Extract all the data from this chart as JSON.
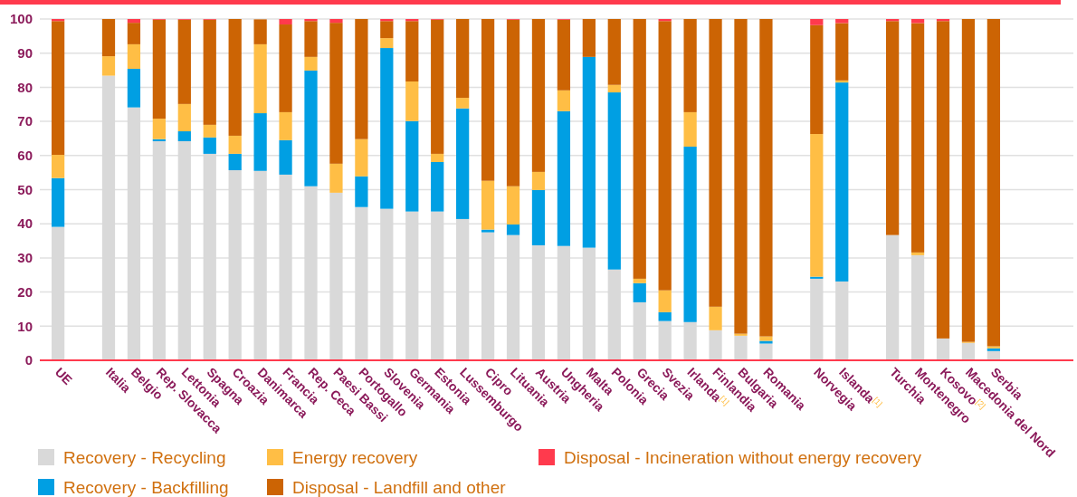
{
  "chart_data": {
    "type": "bar",
    "stacked": true,
    "grid": "y",
    "legend": "bottom",
    "categories": [
      "UE",
      null,
      "Italia",
      "Belgio",
      "Rep. Slovacca",
      "Lettonia",
      "Spagna",
      "Croazia",
      "Danimarca",
      "Francia",
      "Rep. Ceca",
      "Paesi Bassi",
      "Portogallo",
      "Slovenia",
      "Germania",
      "Estonia",
      "Lussemburgo",
      "Cipro",
      "Lituania",
      "Austria",
      "Ungheria",
      "Malta",
      "Polonia",
      "Grecia",
      "Svezia",
      "Irlanda$^{[1]}$",
      "Finlandia",
      "Bulgaria",
      "Romania",
      null,
      "Norvegia",
      "Islanda$^{[1]}$",
      null,
      "Turchia",
      "Montenegro",
      "Kosovo$^{[2]}$",
      "Macedonia del Nord",
      "Serbia"
    ],
    "ylim": [
      0,
      100
    ],
    "yticks": [
      0,
      10,
      20,
      30,
      40,
      50,
      60,
      70,
      80,
      90,
      100
    ],
    "series": [
      {
        "name": "Recovery - Recycling",
        "color": "#d9d9d9",
        "values": [
          39.1,
          null,
          83.4,
          74.1,
          64.2,
          64.2,
          60.5,
          55.7,
          55.5,
          54.4,
          51.0,
          49.1,
          44.9,
          44.4,
          43.6,
          43.6,
          41.4,
          37.5,
          36.7,
          33.7,
          33.5,
          33.0,
          26.6,
          17.0,
          11.5,
          11.2,
          8.8,
          7.2,
          4.9,
          null,
          23.9,
          23.1,
          null,
          36.7,
          30.8,
          6.4,
          5.1,
          2.7
        ]
      },
      {
        "name": "Recovery - Backfilling",
        "color": "#009fe3",
        "values": [
          14.3,
          null,
          0,
          11.3,
          0.6,
          2.9,
          4.8,
          4.8,
          16.9,
          10.1,
          33.9,
          0,
          9.0,
          47.1,
          26.5,
          14.5,
          32.4,
          0.8,
          3.1,
          16.2,
          39.5,
          55.9,
          51.9,
          5.6,
          2.6,
          51.4,
          0,
          0,
          0.8,
          null,
          0.6,
          58.3,
          null,
          0,
          0,
          0,
          0,
          0.8
        ]
      },
      {
        "name": "Energy recovery",
        "color": "#ffbe45",
        "values": [
          6.8,
          null,
          5.7,
          7.2,
          6.0,
          8.0,
          3.7,
          5.3,
          20.2,
          8.2,
          4.0,
          8.5,
          10.9,
          2.9,
          11.6,
          2.4,
          3.1,
          14.3,
          11.2,
          5.3,
          6.1,
          0,
          2.2,
          1.3,
          6.4,
          10.1,
          6.9,
          0.6,
          1.3,
          null,
          41.8,
          0.6,
          null,
          0,
          0.8,
          0,
          0.3,
          0.6
        ]
      },
      {
        "name": "Disposal - Landfill and other",
        "color": "#cc6404",
        "values": [
          39.2,
          null,
          10.9,
          6.3,
          29.0,
          24.7,
          30.8,
          34.2,
          7.3,
          25.7,
          10.5,
          41.3,
          35.2,
          5.0,
          17.7,
          39.3,
          23.1,
          47.4,
          48.8,
          44.8,
          20.7,
          11.1,
          19.3,
          76.1,
          78.9,
          27.3,
          84.3,
          92.2,
          93.0,
          null,
          31.9,
          16.8,
          null,
          62.7,
          67.2,
          93.0,
          94.6,
          95.9
        ]
      },
      {
        "name": "Disposal - Incineration without energy recovery",
        "color": "#ff3a4d",
        "values": [
          0.6,
          null,
          0,
          1.1,
          0.2,
          0.2,
          0.2,
          0,
          0,
          1.6,
          0.6,
          1.1,
          0,
          0.6,
          0.6,
          0.2,
          0,
          0,
          0.2,
          0,
          0.2,
          0,
          0,
          0,
          0.6,
          0,
          0,
          0,
          0,
          null,
          1.8,
          1.2,
          null,
          0.6,
          1.2,
          0.6,
          0,
          0
        ]
      }
    ]
  }
}
